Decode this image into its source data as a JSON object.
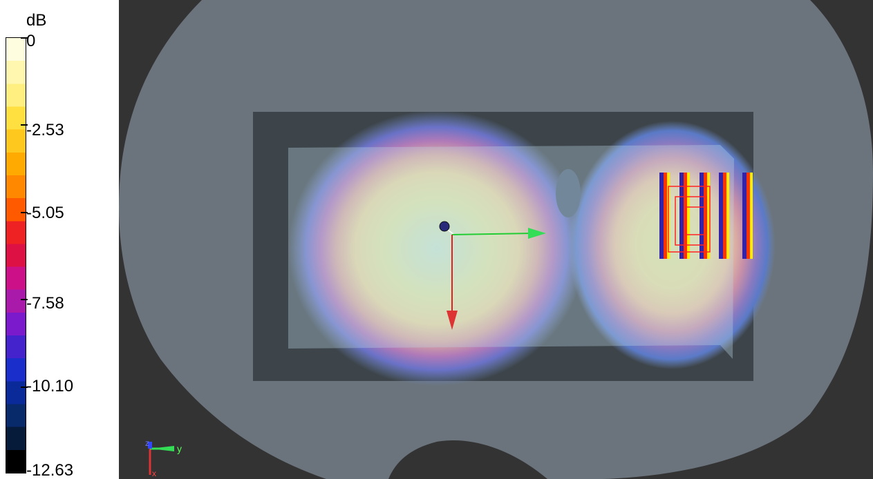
{
  "legend": {
    "unit": "dB",
    "ticks": [
      "0",
      "-2.53",
      "-5.05",
      "-7.58",
      "-10.10",
      "-12.63"
    ],
    "colors": [
      "#fffde0",
      "#fff6b0",
      "#ffee80",
      "#ffe040",
      "#ffc81e",
      "#ffaa00",
      "#ff8800",
      "#ff5a00",
      "#ee2222",
      "#dd1144",
      "#cc1188",
      "#aa1aaa",
      "#7a1acc",
      "#4422cc",
      "#1a2ecc",
      "#0a2a9a",
      "#082a6a",
      "#061a3a",
      "#000000"
    ]
  },
  "viewport": {
    "axis_triad": {
      "z_label": "z",
      "y_label": "y",
      "x_label": "x"
    }
  }
}
